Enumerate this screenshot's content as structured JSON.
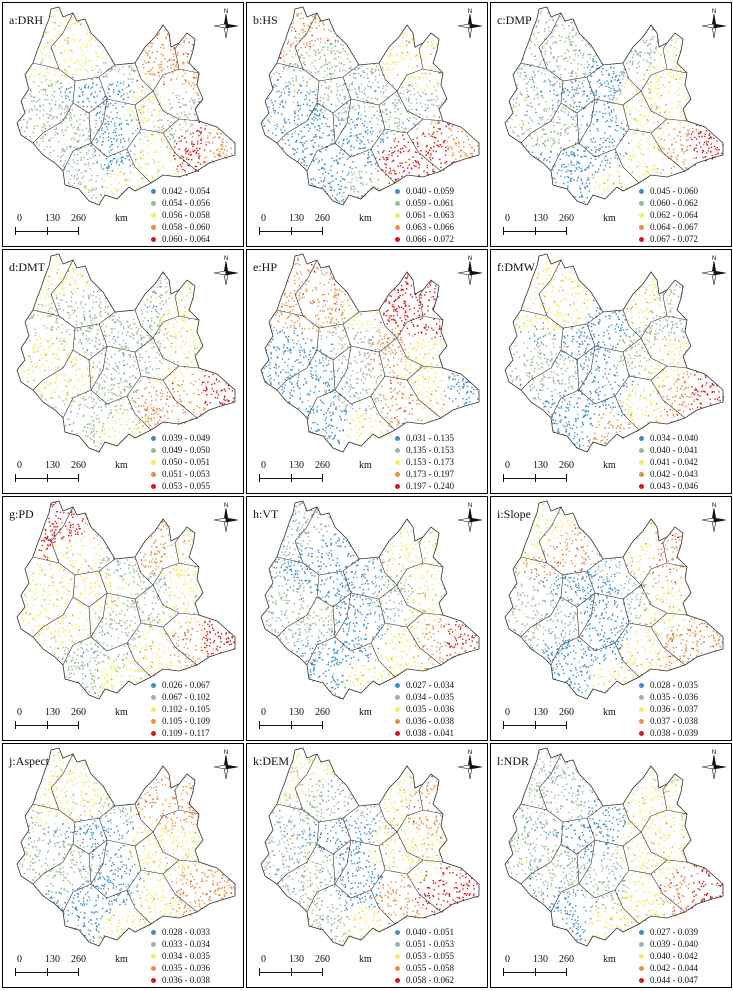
{
  "palette": [
    "#3b8fd0",
    "#9db89a",
    "#f4ec6b",
    "#ec8e45",
    "#d7191c"
  ],
  "north_label": "N",
  "scale": {
    "labels": [
      "0",
      "130",
      "260",
      "km"
    ]
  },
  "boundary_color": "#333333",
  "panels": [
    {
      "title": "a:DRH",
      "zones": [
        2,
        2,
        1,
        0,
        0,
        1,
        3,
        3,
        2,
        1,
        1,
        3,
        4,
        2,
        2
      ],
      "legend": [
        "0.042 - 0.054",
        "0.054 - 0.056",
        "0.056 - 0.058",
        "0.058 - 0.060",
        "0.060 - 0.064"
      ]
    },
    {
      "title": "b:HS",
      "zones": [
        3,
        1,
        1,
        1,
        0,
        0,
        2,
        2,
        1,
        1,
        0,
        3,
        4,
        4,
        1
      ],
      "legend": [
        "0.040 - 0.059",
        "0.059 - 0.061",
        "0.061 - 0.063",
        "0.063 - 0.066",
        "0.066 - 0.072"
      ]
    },
    {
      "title": "c:DMP",
      "zones": [
        1,
        1,
        0,
        0,
        0,
        1,
        1,
        2,
        2,
        2,
        0,
        4,
        3,
        2,
        2
      ],
      "legend": [
        "0.045 - 0.060",
        "0.060 - 0.062",
        "0.062 - 0.064",
        "0.064 - 0.067",
        "0.067 - 0.072"
      ]
    },
    {
      "title": "d:DMT",
      "zones": [
        2,
        1,
        1,
        1,
        1,
        2,
        1,
        2,
        1,
        2,
        1,
        4,
        3,
        3,
        2
      ],
      "legend": [
        "0.039 - 0.049",
        "0.049 - 0.050",
        "0.050 - 0.051",
        "0.051 - 0.053",
        "0.053 - 0.055"
      ]
    },
    {
      "title": "e:HP",
      "zones": [
        3,
        3,
        2,
        1,
        1,
        0,
        4,
        4,
        3,
        2,
        0,
        0,
        2,
        3,
        2
      ],
      "legend": [
        "0.031 - 0.135",
        "0.135 - 0.153",
        "0.153 - 0.173",
        "0.173 - 0.197",
        "0.197 - 0.240"
      ]
    },
    {
      "title": "f:DMW",
      "zones": [
        2,
        2,
        0,
        0,
        0,
        1,
        2,
        1,
        1,
        2,
        0,
        4,
        3,
        2,
        3
      ],
      "legend": [
        "0.034 - 0.040",
        "0.040 - 0.041",
        "0.041 - 0.042",
        "0.042 - 0.043",
        "0.043 - 0.046"
      ]
    },
    {
      "title": "g:PD",
      "zones": [
        4,
        2,
        1,
        2,
        1,
        2,
        3,
        2,
        1,
        2,
        1,
        4,
        3,
        2,
        2
      ],
      "legend": [
        "0.026 - 0.067",
        "0.067 - 0.102",
        "0.102 - 0.105",
        "0.105 - 0.109",
        "0.109 - 0.117"
      ]
    },
    {
      "title": "h:VT",
      "zones": [
        1,
        0,
        0,
        0,
        0,
        1,
        2,
        2,
        1,
        2,
        0,
        4,
        3,
        2,
        2
      ],
      "legend": [
        "0.027 - 0.034",
        "0.034 - 0.035",
        "0.035 - 0.036",
        "0.036 - 0.038",
        "0.038 - 0.041"
      ]
    },
    {
      "title": "i:Slope",
      "zones": [
        2,
        3,
        1,
        0,
        0,
        1,
        2,
        3,
        1,
        2,
        0,
        3,
        3,
        2,
        2
      ],
      "legend": [
        "0.028 - 0.035",
        "0.035 - 0.036",
        "0.036 - 0.037",
        "0.037 - 0.038",
        "0.038 - 0.039"
      ]
    },
    {
      "title": "j:Aspect",
      "zones": [
        2,
        2,
        1,
        0,
        0,
        1,
        3,
        3,
        2,
        2,
        0,
        3,
        3,
        2,
        2
      ],
      "legend": [
        "0.028 - 0.033",
        "0.033 - 0.034",
        "0.034 - 0.035",
        "0.035 - 0.036",
        "0.036 - 0.038"
      ]
    },
    {
      "title": "k:DEM",
      "zones": [
        2,
        1,
        1,
        0,
        0,
        1,
        2,
        3,
        2,
        2,
        1,
        4,
        4,
        3,
        2
      ],
      "legend": [
        "0.040 - 0.051",
        "0.051 - 0.053",
        "0.053 - 0.055",
        "0.055 - 0.058",
        "0.058 - 0.062"
      ]
    },
    {
      "title": "l:NDR",
      "zones": [
        1,
        1,
        0,
        0,
        1,
        1,
        2,
        2,
        2,
        2,
        0,
        4,
        3,
        2,
        2
      ],
      "legend": [
        "0.027 - 0.039",
        "0.039 - 0.040",
        "0.040 - 0.042",
        "0.042 - 0.044",
        "0.044 - 0.047"
      ]
    }
  ]
}
